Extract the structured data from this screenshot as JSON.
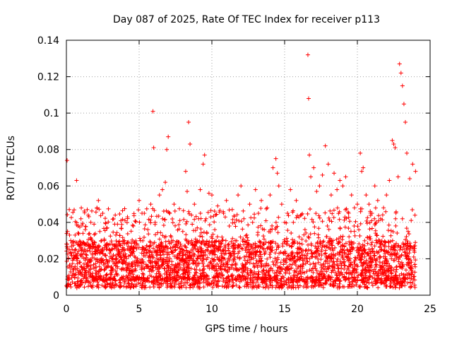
{
  "chart_data": {
    "type": "scatter",
    "title": "Day 087 of 2025, Rate Of TEC Index for receiver p113",
    "xlabel": "GPS time / hours",
    "ylabel": "ROTI / TECUs",
    "xlim": [
      0,
      25
    ],
    "ylim": [
      0,
      0.14
    ],
    "xticks": [
      0,
      5,
      10,
      15,
      20,
      25
    ],
    "xtick_labels": [
      "0",
      "5",
      "10",
      "15",
      "20",
      "25"
    ],
    "yticks": [
      0,
      0.02,
      0.04,
      0.06,
      0.08,
      0.1,
      0.12,
      0.14
    ],
    "ytick_labels": [
      "0",
      "0.02",
      "0.04",
      "0.06",
      "0.08",
      "0.1",
      "0.12",
      "0.14"
    ],
    "grid": true,
    "marker": "+",
    "marker_color": "#ff0000",
    "series": [
      {
        "name": "ROTI",
        "x": [
          0.05,
          0.08,
          0.12,
          0.2,
          0.25,
          0.3,
          0.4,
          0.5,
          0.6,
          0.7,
          0.75,
          0.8,
          0.9,
          1.0,
          1.1,
          1.2,
          1.3,
          1.4,
          1.5,
          1.6,
          1.7,
          1.8,
          1.9,
          2.0,
          2.1,
          2.2,
          2.3,
          2.4,
          2.5,
          2.6,
          2.7,
          2.8,
          2.9,
          3.0,
          3.2,
          3.4,
          3.6,
          3.8,
          4.0,
          4.2,
          4.4,
          4.6,
          4.8,
          5.0,
          5.1,
          5.2,
          5.4,
          5.6,
          5.8,
          5.95,
          6.0,
          6.1,
          6.2,
          6.4,
          6.6,
          6.8,
          6.9,
          7.0,
          7.1,
          7.2,
          7.4,
          7.6,
          7.8,
          8.0,
          8.2,
          8.3,
          8.4,
          8.5,
          8.6,
          8.8,
          9.0,
          9.2,
          9.4,
          9.5,
          9.6,
          9.8,
          10.0,
          10.2,
          10.4,
          10.6,
          10.8,
          11.0,
          11.2,
          11.4,
          11.6,
          11.8,
          12.0,
          12.2,
          12.4,
          12.6,
          12.8,
          13.0,
          13.2,
          13.4,
          13.6,
          13.8,
          14.0,
          14.2,
          14.4,
          14.5,
          14.6,
          14.8,
          15.0,
          15.2,
          15.4,
          15.6,
          15.8,
          16.0,
          16.2,
          16.4,
          16.6,
          16.65,
          16.7,
          16.8,
          17.0,
          17.2,
          17.4,
          17.6,
          17.8,
          18.0,
          18.2,
          18.4,
          18.6,
          18.8,
          19.0,
          19.2,
          19.4,
          19.6,
          19.8,
          20.0,
          20.2,
          20.3,
          20.4,
          20.6,
          20.8,
          21.0,
          21.2,
          21.4,
          21.6,
          21.8,
          22.0,
          22.2,
          22.4,
          22.5,
          22.6,
          22.8,
          22.9,
          23.0,
          23.1,
          23.2,
          23.3,
          23.4,
          23.6,
          23.8,
          24.0
        ],
        "y": [
          0.074,
          0.035,
          0.02,
          0.047,
          0.015,
          0.03,
          0.025,
          0.012,
          0.033,
          0.063,
          0.02,
          0.038,
          0.018,
          0.042,
          0.028,
          0.015,
          0.036,
          0.022,
          0.044,
          0.019,
          0.031,
          0.012,
          0.039,
          0.026,
          0.048,
          0.052,
          0.035,
          0.018,
          0.045,
          0.03,
          0.022,
          0.037,
          0.016,
          0.028,
          0.02,
          0.033,
          0.025,
          0.014,
          0.03,
          0.043,
          0.022,
          0.038,
          0.018,
          0.052,
          0.03,
          0.045,
          0.025,
          0.036,
          0.05,
          0.101,
          0.081,
          0.04,
          0.022,
          0.055,
          0.058,
          0.062,
          0.08,
          0.087,
          0.045,
          0.032,
          0.05,
          0.028,
          0.041,
          0.035,
          0.068,
          0.057,
          0.095,
          0.083,
          0.044,
          0.05,
          0.03,
          0.058,
          0.072,
          0.077,
          0.042,
          0.056,
          0.055,
          0.036,
          0.049,
          0.028,
          0.045,
          0.052,
          0.038,
          0.047,
          0.03,
          0.055,
          0.06,
          0.042,
          0.033,
          0.05,
          0.04,
          0.058,
          0.045,
          0.052,
          0.036,
          0.048,
          0.055,
          0.07,
          0.075,
          0.067,
          0.06,
          0.05,
          0.04,
          0.045,
          0.058,
          0.04,
          0.052,
          0.032,
          0.028,
          0.036,
          0.132,
          0.108,
          0.077,
          0.065,
          0.07,
          0.057,
          0.06,
          0.066,
          0.082,
          0.072,
          0.055,
          0.067,
          0.058,
          0.063,
          0.06,
          0.065,
          0.045,
          0.055,
          0.048,
          0.05,
          0.078,
          0.068,
          0.07,
          0.055,
          0.05,
          0.045,
          0.06,
          0.052,
          0.042,
          0.048,
          0.055,
          0.063,
          0.085,
          0.083,
          0.081,
          0.065,
          0.127,
          0.122,
          0.115,
          0.105,
          0.095,
          0.078,
          0.064,
          0.072,
          0.068
        ]
      }
    ],
    "band": {
      "description": "dense scatter of observations spanning the full day",
      "x_range": [
        0,
        24
      ],
      "y_floor": 0.004,
      "y_typical_range": [
        0.008,
        0.03
      ]
    }
  }
}
